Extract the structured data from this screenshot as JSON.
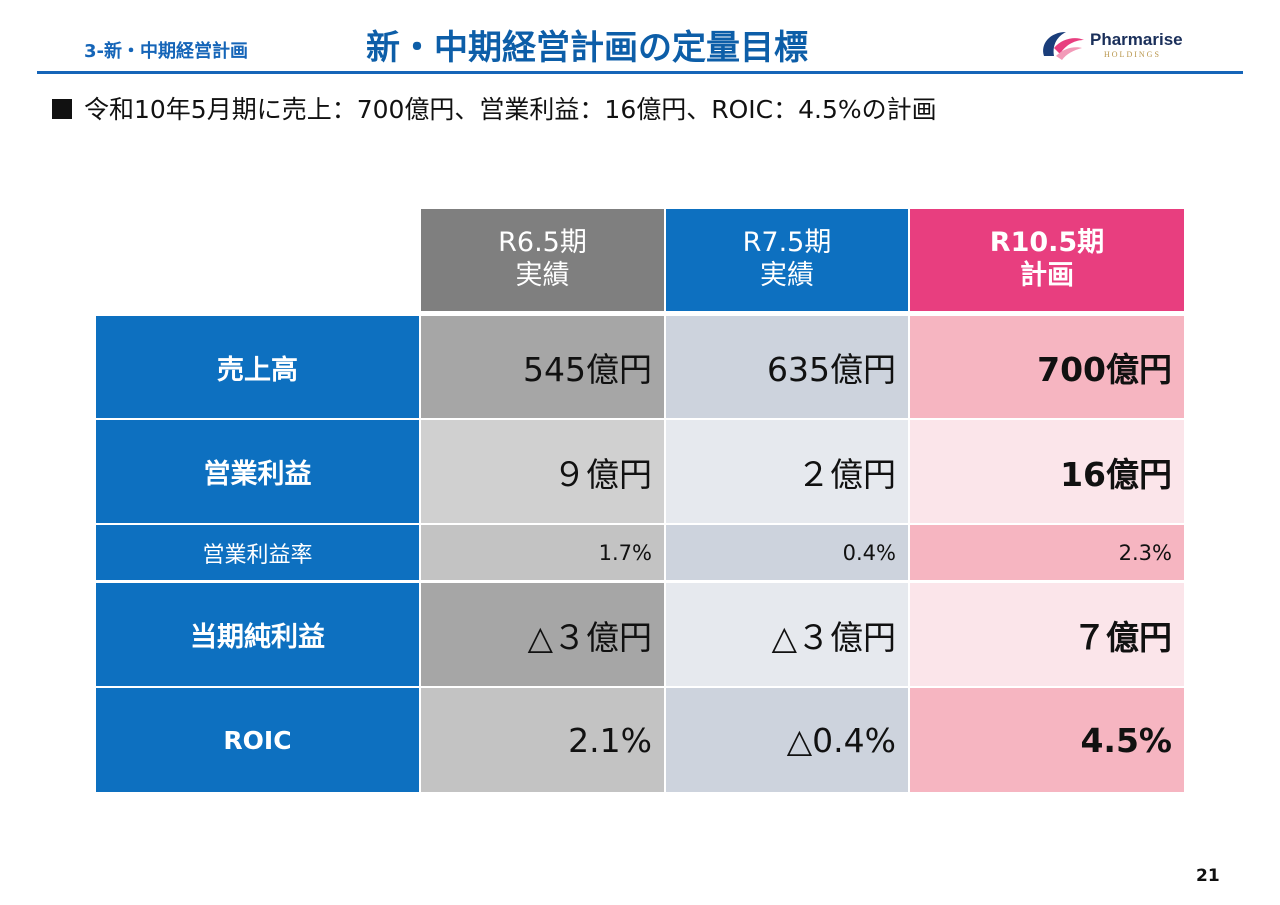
{
  "header": {
    "section": "3-新・中期経営計画",
    "title": "新・中期経営計画の定量目標",
    "logo_name": "Pharmarise",
    "logo_sub": "HOLDINGS"
  },
  "bullet": "令和10年5月期に売上：700億円、営業利益：16億円、ROIC：4.5%の計画",
  "table": {
    "columns": [
      {
        "period": "R6.5期",
        "kind": "実績",
        "color": "#7f7f7f"
      },
      {
        "period": "R7.5期",
        "kind": "実績",
        "color": "#0d70c0"
      },
      {
        "period": "R10.5期",
        "kind": "計画",
        "color": "#e83e7f"
      }
    ],
    "rows": [
      {
        "label": "売上高",
        "values": [
          "545億円",
          "635億円",
          "700億円"
        ]
      },
      {
        "label": "営業利益",
        "values": [
          "９億円",
          "２億円",
          "16億円"
        ]
      },
      {
        "label": "営業利益率",
        "values": [
          "1.7%",
          "0.4%",
          "2.3%"
        ]
      },
      {
        "label": "当期純利益",
        "values": [
          "△３億円",
          "△３億円",
          "７億円"
        ]
      },
      {
        "label": "ROIC",
        "values": [
          "2.1%",
          "△0.4%",
          "4.5%"
        ]
      }
    ]
  },
  "page_number": "21"
}
